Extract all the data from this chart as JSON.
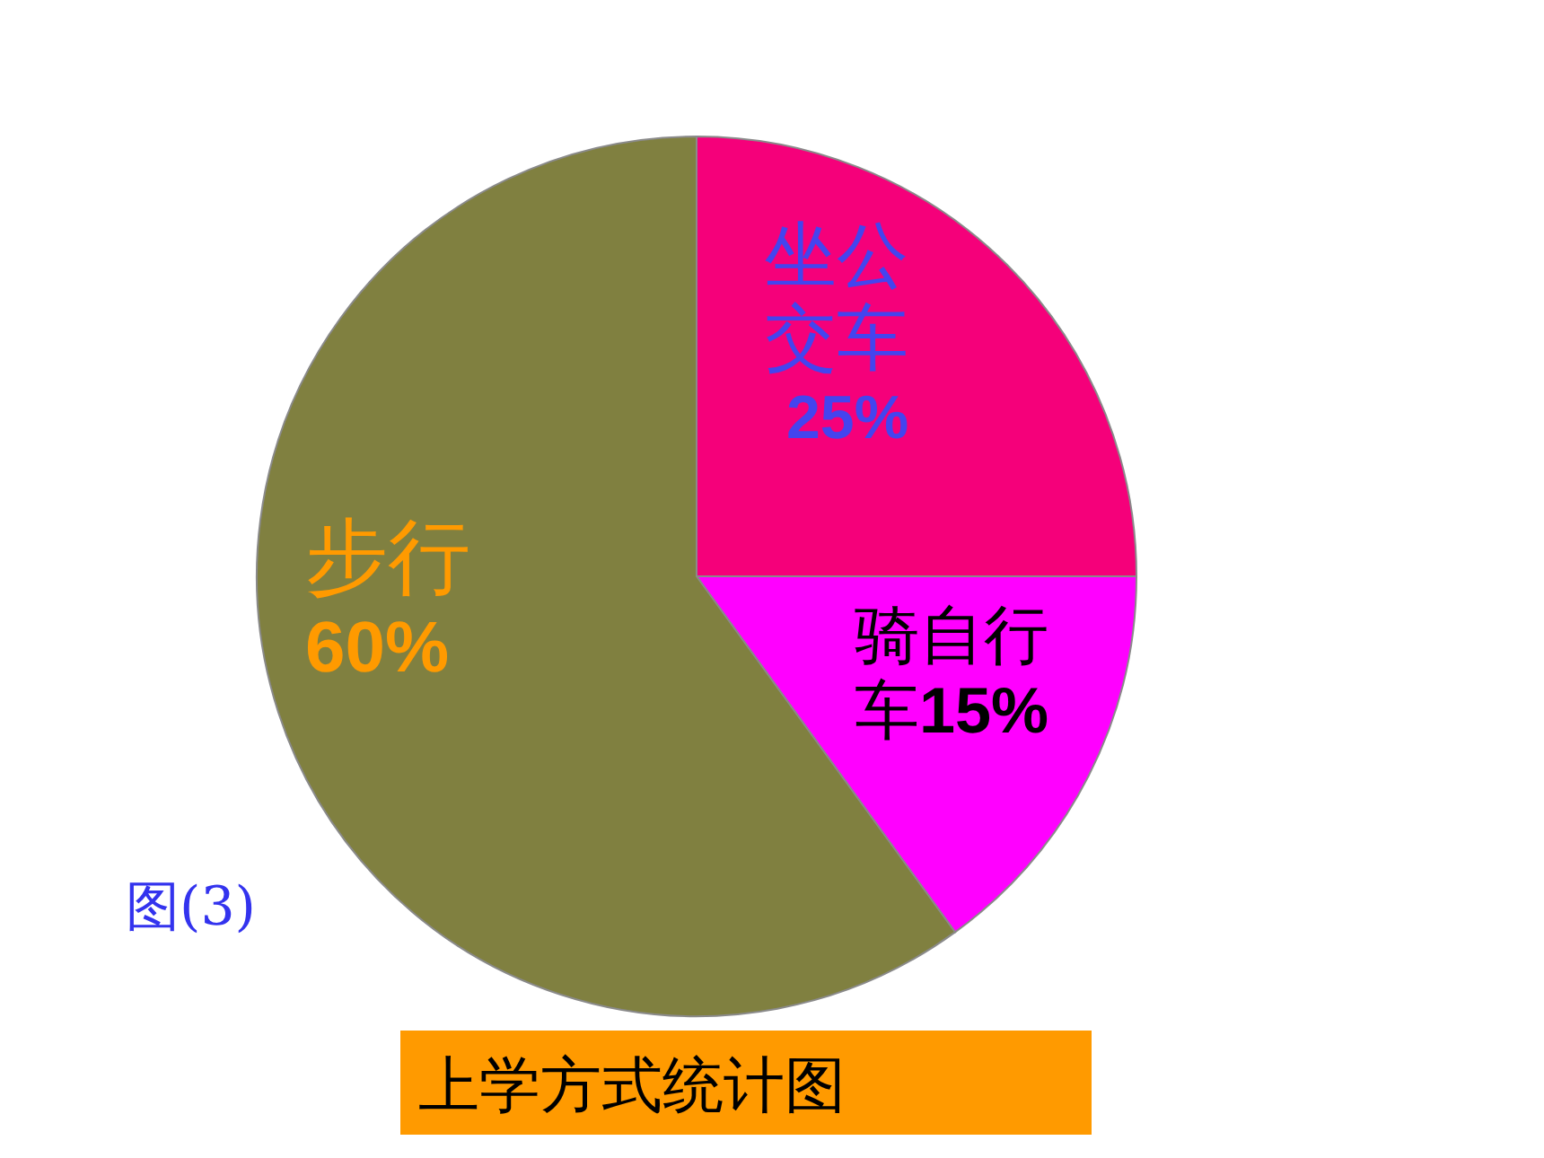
{
  "chart_data": {
    "type": "pie",
    "title": "上学方式统计图",
    "categories": [
      "坐公交车",
      "骑自行车",
      "步行"
    ],
    "values": [
      25,
      15,
      60
    ],
    "colors": [
      "#f5007a",
      "#ff00ff",
      "#808040"
    ],
    "value_labels": [
      "25%",
      "15%",
      "60%"
    ],
    "annotations": [
      "图(3)"
    ]
  }
}
